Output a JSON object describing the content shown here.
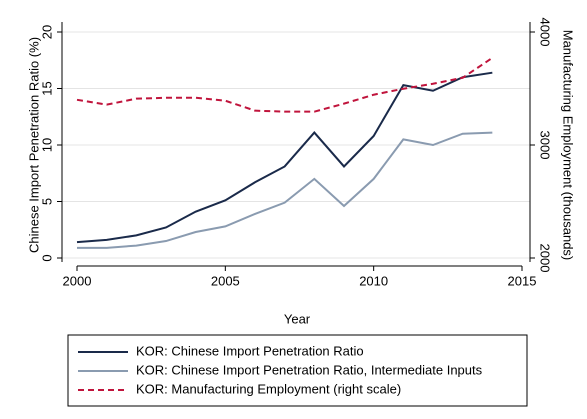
{
  "chart_data": {
    "type": "line",
    "x_label": "Year",
    "y_label": "Chinese Import Penetration Ratio (%)",
    "y2_label": "Manufacturing Employment (thousands)",
    "x": [
      2000,
      2001,
      2002,
      2003,
      2004,
      2005,
      2006,
      2007,
      2008,
      2009,
      2010,
      2011,
      2012,
      2013,
      2014
    ],
    "series": [
      {
        "name": "KOR: Chinese Import Penetration Ratio",
        "color": "#1a2a4a",
        "dashed": false,
        "values": [
          1.4,
          1.6,
          2.0,
          2.7,
          4.1,
          5.1,
          6.7,
          8.1,
          11.1,
          8.1,
          10.8,
          15.3,
          14.8,
          16.0,
          16.4
        ]
      },
      {
        "name": "KOR: Chinese Import Penetration Ratio, Intermediate Inputs",
        "color": "#8a9bb0",
        "dashed": false,
        "values": [
          0.9,
          0.9,
          1.1,
          1.5,
          2.3,
          2.8,
          3.9,
          4.9,
          7.0,
          4.6,
          7.0,
          10.5,
          10.0,
          11.0,
          11.1
        ]
      },
      {
        "name": "KOR: Manufacturing Employment (right scale)",
        "color": "#c0143c",
        "dashed": true,
        "axis": "y2",
        "values": [
          3400,
          3357,
          3410,
          3418,
          3418,
          3392,
          3304,
          3295,
          3295,
          3366,
          3445,
          3498,
          3542,
          3595,
          3771
        ]
      }
    ],
    "xlim": [
      2000,
      2015
    ],
    "xticks": [
      2000,
      2005,
      2010,
      2015
    ],
    "ylim": [
      0,
      20
    ],
    "yticks": [
      0,
      5,
      10,
      15,
      20
    ],
    "y2lim": [
      2000,
      4000
    ],
    "y2ticks": [
      2000,
      3000,
      4000
    ],
    "grid": true,
    "legend": "bottom"
  }
}
